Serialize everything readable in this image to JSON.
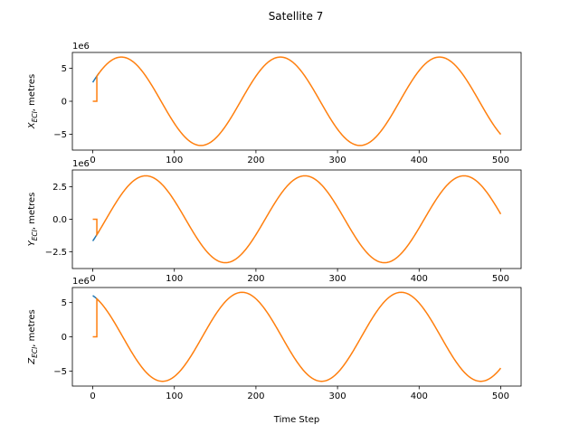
{
  "chart_data": {
    "type": "line",
    "title": "Satellite 7",
    "xlabel": "Time Step",
    "xlim": [
      -25,
      525
    ],
    "x_ticks": [
      0,
      100,
      200,
      300,
      400,
      500
    ],
    "colors": {
      "series_1": "#1f77b4",
      "series_2": "#ff7f0e"
    },
    "subplots": [
      {
        "ylabel_main": "X",
        "ylabel_sub": "ECI",
        "ylabel_tail": ", metres",
        "offset_text": "1e6",
        "ylim": [
          -7.4,
          7.4
        ],
        "y_ticks": [
          -5,
          0,
          5
        ],
        "y_tick_labels": [
          "−5",
          "0",
          "5"
        ],
        "series_1_end": 8,
        "series_2_hold_until": 5,
        "series_2_hold_value": 0,
        "wave": {
          "amplitude": 6.7,
          "period": 195,
          "phase_step": 35
        }
      },
      {
        "ylabel_main": "Y",
        "ylabel_sub": "ECI",
        "ylabel_tail": ", metres",
        "offset_text": "1e6",
        "ylim": [
          -3.8,
          3.8
        ],
        "y_ticks": [
          -2.5,
          0,
          2.5
        ],
        "y_tick_labels": [
          "−2.5",
          "0.0",
          "2.5"
        ],
        "series_1_end": 8,
        "series_2_hold_until": 5,
        "series_2_hold_value": 0,
        "wave": {
          "amplitude": 3.35,
          "period": 195,
          "phase_step": 65
        }
      },
      {
        "ylabel_main": "Z",
        "ylabel_sub": "ECI",
        "ylabel_tail": ", metres",
        "offset_text": "1e6",
        "ylim": [
          -7.2,
          7.2
        ],
        "y_ticks": [
          -5,
          0,
          5
        ],
        "y_tick_labels": [
          "−5",
          "0",
          "5"
        ],
        "series_1_end": 8,
        "series_2_hold_until": 5,
        "series_2_hold_value": 0,
        "wave": {
          "amplitude": 6.5,
          "period": 195,
          "phase_step": -12
        }
      }
    ]
  }
}
